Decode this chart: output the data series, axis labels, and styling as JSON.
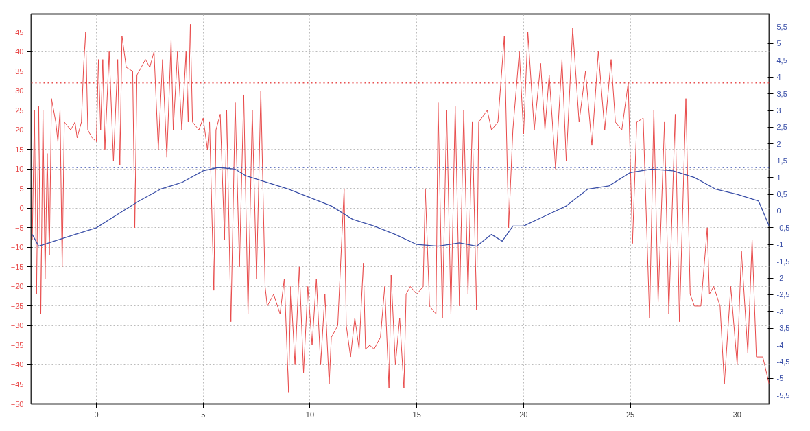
{
  "chart_data": {
    "type": "line",
    "xlim": [
      -3.05,
      31.5
    ],
    "xticks": [
      0,
      5,
      10,
      15,
      20,
      25,
      30
    ],
    "ylim": [
      -50,
      49.6
    ],
    "yticks": [
      -50,
      -45,
      -40,
      -35,
      -30,
      -25,
      -20,
      -15,
      -10,
      -5,
      0,
      5,
      10,
      15,
      20,
      25,
      30,
      35,
      40,
      45
    ],
    "y2lim": [
      -5.76,
      5.88
    ],
    "y2ticks": [
      {
        "value": -5.5,
        "label": "-5,5"
      },
      {
        "value": -5,
        "label": "-5"
      },
      {
        "value": -4.5,
        "label": "-4,5"
      },
      {
        "value": -4,
        "label": "-4"
      },
      {
        "value": -3.5,
        "label": "-3,5"
      },
      {
        "value": -3,
        "label": "-3"
      },
      {
        "value": -2.5,
        "label": "-2,5"
      },
      {
        "value": -2,
        "label": "-2"
      },
      {
        "value": -1.5,
        "label": "-1,5"
      },
      {
        "value": -1,
        "label": "-1"
      },
      {
        "value": -0.5,
        "label": "-0,5"
      },
      {
        "value": 0,
        "label": "0"
      },
      {
        "value": 0.5,
        "label": "0,5"
      },
      {
        "value": 1,
        "label": "1"
      },
      {
        "value": 1.5,
        "label": "1,5"
      },
      {
        "value": 2,
        "label": "2"
      },
      {
        "value": 2.5,
        "label": "2,5"
      },
      {
        "value": 3,
        "label": "3"
      },
      {
        "value": 3.5,
        "label": "3,5"
      },
      {
        "value": 4,
        "label": "4"
      },
      {
        "value": 4.5,
        "label": "4,5"
      },
      {
        "value": 5,
        "label": "5"
      },
      {
        "value": 5.5,
        "label": "5,5"
      }
    ],
    "grid": true,
    "marker": "none",
    "line_style": "solid",
    "ref_lines": [
      {
        "axis": "y",
        "value": 32,
        "label": null,
        "color": "#e85050",
        "line_style": "dotted"
      },
      {
        "axis": "y2",
        "value": 1.3,
        "label": null,
        "color": "#3a4fb0",
        "line_style": "dotted"
      }
    ],
    "series": [
      {
        "color": "#e84a4a",
        "x": [
          -3.0,
          -2.9,
          -2.8,
          -2.7,
          -2.6,
          -2.5,
          -2.4,
          -2.3,
          -2.2,
          -2.1,
          -1.9,
          -1.8,
          -1.7,
          -1.6,
          -1.5,
          -1.2,
          -1.0,
          -0.9,
          -0.7,
          -0.6,
          -0.5,
          -0.4,
          -0.2,
          0.0,
          0.1,
          0.2,
          0.3,
          0.4,
          0.6,
          0.8,
          1.0,
          1.1,
          1.2,
          1.4,
          1.7,
          1.8,
          1.9,
          2.3,
          2.5,
          2.7,
          2.9,
          3.1,
          3.3,
          3.5,
          3.6,
          3.8,
          4.0,
          4.2,
          4.3,
          4.4,
          4.5,
          4.8,
          5.0,
          5.2,
          5.3,
          5.5,
          5.6,
          5.8,
          6.0,
          6.1,
          6.3,
          6.5,
          6.7,
          6.9,
          7.1,
          7.3,
          7.5,
          7.7,
          7.9,
          8.0,
          8.3,
          8.6,
          8.8,
          9.0,
          9.1,
          9.3,
          9.5,
          9.7,
          9.9,
          10.1,
          10.3,
          10.5,
          10.7,
          10.9,
          11.0,
          11.3,
          11.6,
          11.7,
          11.9,
          12.1,
          12.3,
          12.5,
          12.6,
          12.8,
          13.0,
          13.3,
          13.5,
          13.7,
          13.8,
          14.0,
          14.2,
          14.4,
          14.5,
          14.7,
          15.0,
          15.3,
          15.4,
          15.6,
          15.9,
          16.0,
          16.2,
          16.4,
          16.6,
          16.8,
          17.0,
          17.2,
          17.4,
          17.6,
          17.8,
          17.9,
          18.3,
          18.5,
          18.8,
          19.1,
          19.3,
          19.5,
          19.8,
          20.0,
          20.2,
          20.5,
          20.8,
          21.0,
          21.2,
          21.5,
          21.8,
          22.0,
          22.3,
          22.6,
          22.9,
          23.2,
          23.5,
          23.8,
          24.1,
          24.3,
          24.6,
          24.9,
          25.1,
          25.3,
          25.6,
          25.9,
          26.1,
          26.3,
          26.6,
          26.8,
          27.1,
          27.3,
          27.6,
          27.8,
          28.0,
          28.3,
          28.6,
          28.7,
          28.9,
          29.2,
          29.4,
          29.7,
          30.0,
          30.2,
          30.5,
          30.7,
          30.9,
          31.2,
          31.5
        ],
        "values": [
          -8,
          25,
          -22,
          26,
          -27,
          25,
          -18,
          14,
          -12,
          28,
          22,
          17,
          25,
          -15,
          22,
          20,
          22,
          18,
          22,
          36,
          45,
          20,
          18,
          17,
          38,
          20,
          38,
          15,
          40,
          12,
          38,
          11,
          44,
          36,
          35,
          -5,
          34,
          38,
          36,
          40,
          15,
          38,
          13,
          43,
          20,
          40,
          20,
          40,
          22,
          47,
          22,
          20,
          23,
          15,
          22,
          -21,
          20,
          24,
          -8,
          25,
          -29,
          27,
          -15,
          29,
          -27,
          25,
          -18,
          30,
          -20,
          -25,
          -22,
          -27,
          -18,
          -47,
          -20,
          -40,
          -15,
          -42,
          -20,
          -35,
          -18,
          -40,
          -22,
          -45,
          -33,
          -30,
          5,
          -30,
          -38,
          -28,
          -36,
          -14,
          -36,
          -35,
          -36,
          -33,
          -20,
          -46,
          -17,
          -40,
          -28,
          -46,
          -22,
          -20,
          -22,
          -20,
          5,
          -25,
          -27,
          27,
          -28,
          25,
          -27,
          26,
          -25,
          25,
          -22,
          22,
          -26,
          22,
          25,
          20,
          22,
          44,
          -5,
          20,
          40,
          19,
          45,
          20,
          37,
          20,
          34,
          10,
          38,
          12,
          46,
          22,
          35,
          16,
          40,
          20,
          38,
          22,
          20,
          32,
          -9,
          22,
          23,
          -28,
          25,
          -24,
          22,
          -27,
          24,
          -29,
          28,
          -22,
          -25,
          -25,
          -5,
          -22,
          -20,
          -25,
          -45,
          -20,
          -40,
          -11,
          -37,
          -8,
          -38,
          -38,
          -45
        ]
      },
      {
        "color": "#3a4fa8",
        "axis": "y2",
        "x": [
          -3.0,
          -2.7,
          -1.0,
          0,
          1,
          2,
          3,
          4,
          5,
          5.7,
          6.5,
          7,
          8,
          9,
          10,
          11,
          12,
          13,
          14,
          15,
          16,
          17,
          17.8,
          18.5,
          19,
          19.5,
          20,
          21,
          22,
          23,
          24,
          25,
          26,
          27,
          28,
          29,
          30,
          31,
          31.5
        ],
        "values": [
          -0.7,
          -1.05,
          -0.7,
          -0.5,
          -0.1,
          0.3,
          0.65,
          0.85,
          1.2,
          1.3,
          1.25,
          1.05,
          0.85,
          0.65,
          0.4,
          0.15,
          -0.25,
          -0.45,
          -0.7,
          -1.0,
          -1.05,
          -0.95,
          -1.05,
          -0.7,
          -0.9,
          -0.45,
          -0.45,
          -0.15,
          0.15,
          0.65,
          0.75,
          1.15,
          1.25,
          1.2,
          1.0,
          0.65,
          0.5,
          0.3,
          -0.45
        ]
      }
    ]
  }
}
